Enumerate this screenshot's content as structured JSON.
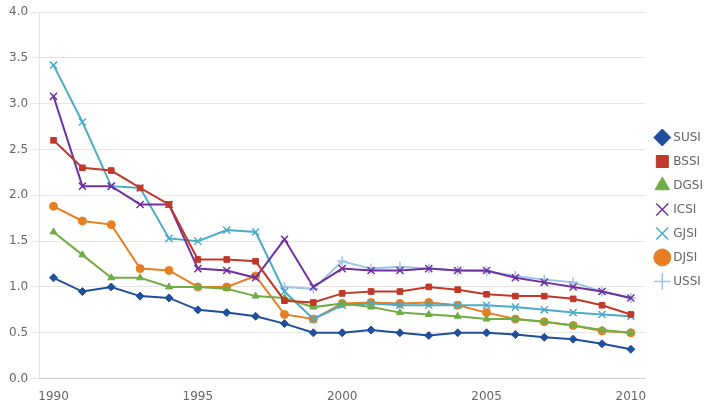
{
  "chart_data": {
    "type": "line",
    "x": [
      1990,
      1991,
      1992,
      1993,
      1994,
      1995,
      1996,
      1997,
      1998,
      1999,
      2000,
      2001,
      2002,
      2003,
      2004,
      2005,
      2006,
      2007,
      2008,
      2009,
      2010
    ],
    "series": [
      {
        "name": "SUSI",
        "color": "#1f4e9b",
        "marker": "diamond",
        "values": [
          1.1,
          0.95,
          1.0,
          0.9,
          0.88,
          0.75,
          0.72,
          0.68,
          0.6,
          0.5,
          0.5,
          0.53,
          0.5,
          0.47,
          0.5,
          0.5,
          0.48,
          0.45,
          0.43,
          0.38,
          0.32
        ]
      },
      {
        "name": "BSSI",
        "color": "#c0392b",
        "marker": "square",
        "values": [
          2.6,
          2.3,
          2.27,
          2.08,
          1.9,
          1.3,
          1.3,
          1.28,
          0.85,
          0.83,
          0.93,
          0.95,
          0.95,
          1.0,
          0.97,
          0.92,
          0.9,
          0.9,
          0.87,
          0.8,
          0.7
        ]
      },
      {
        "name": "DGSI",
        "color": "#70ad47",
        "marker": "triangle",
        "values": [
          1.6,
          1.35,
          1.1,
          1.1,
          1.0,
          1.0,
          0.98,
          0.9,
          0.88,
          0.78,
          0.82,
          0.78,
          0.72,
          0.7,
          0.68,
          0.65,
          0.65,
          0.62,
          0.58,
          0.53,
          0.5
        ]
      },
      {
        "name": "ICSI",
        "color": "#7030a0",
        "marker": "x",
        "values": [
          3.08,
          2.1,
          2.1,
          1.9,
          1.9,
          1.2,
          1.18,
          1.1,
          1.52,
          1.0,
          1.2,
          1.18,
          1.18,
          1.2,
          1.18,
          1.18,
          1.1,
          1.05,
          1.0,
          0.95,
          0.88
        ]
      },
      {
        "name": "GJSI",
        "color": "#4bacc6",
        "marker": "x",
        "values": [
          3.42,
          2.8,
          2.1,
          2.08,
          1.53,
          1.5,
          1.62,
          1.6,
          0.95,
          0.65,
          0.8,
          0.82,
          0.8,
          0.8,
          0.8,
          0.8,
          0.78,
          0.75,
          0.72,
          0.7,
          0.68
        ]
      },
      {
        "name": "DJSI",
        "color": "#e67e22",
        "marker": "circle",
        "values": [
          1.88,
          1.72,
          1.68,
          1.2,
          1.18,
          1.0,
          1.0,
          1.12,
          0.7,
          0.65,
          0.82,
          0.83,
          0.82,
          0.83,
          0.8,
          0.72,
          0.65,
          0.62,
          0.58,
          0.52,
          0.5
        ]
      },
      {
        "name": "USSI",
        "color": "#9dc3e6",
        "marker": "plus",
        "values": [
          null,
          null,
          null,
          null,
          null,
          null,
          null,
          null,
          1.0,
          0.98,
          1.28,
          1.2,
          1.22,
          1.2,
          1.18,
          1.17,
          1.12,
          1.08,
          1.05,
          0.95,
          0.88
        ]
      }
    ],
    "xlim": [
      1989.5,
      2010.5
    ],
    "ylim": [
      0.0,
      4.0
    ],
    "xticks": [
      1990,
      1995,
      2000,
      2005,
      2010
    ],
    "yticks": [
      {
        "value": 0,
        "label": "0.0"
      },
      0.5,
      {
        "value": 1,
        "label": "1.0"
      },
      1.5,
      {
        "value": 2,
        "label": "2.0"
      },
      2.5,
      {
        "value": 3,
        "label": "3.0"
      },
      3.5,
      {
        "value": 4,
        "label": "4.0"
      }
    ],
    "grid": "y",
    "legend": "right"
  }
}
